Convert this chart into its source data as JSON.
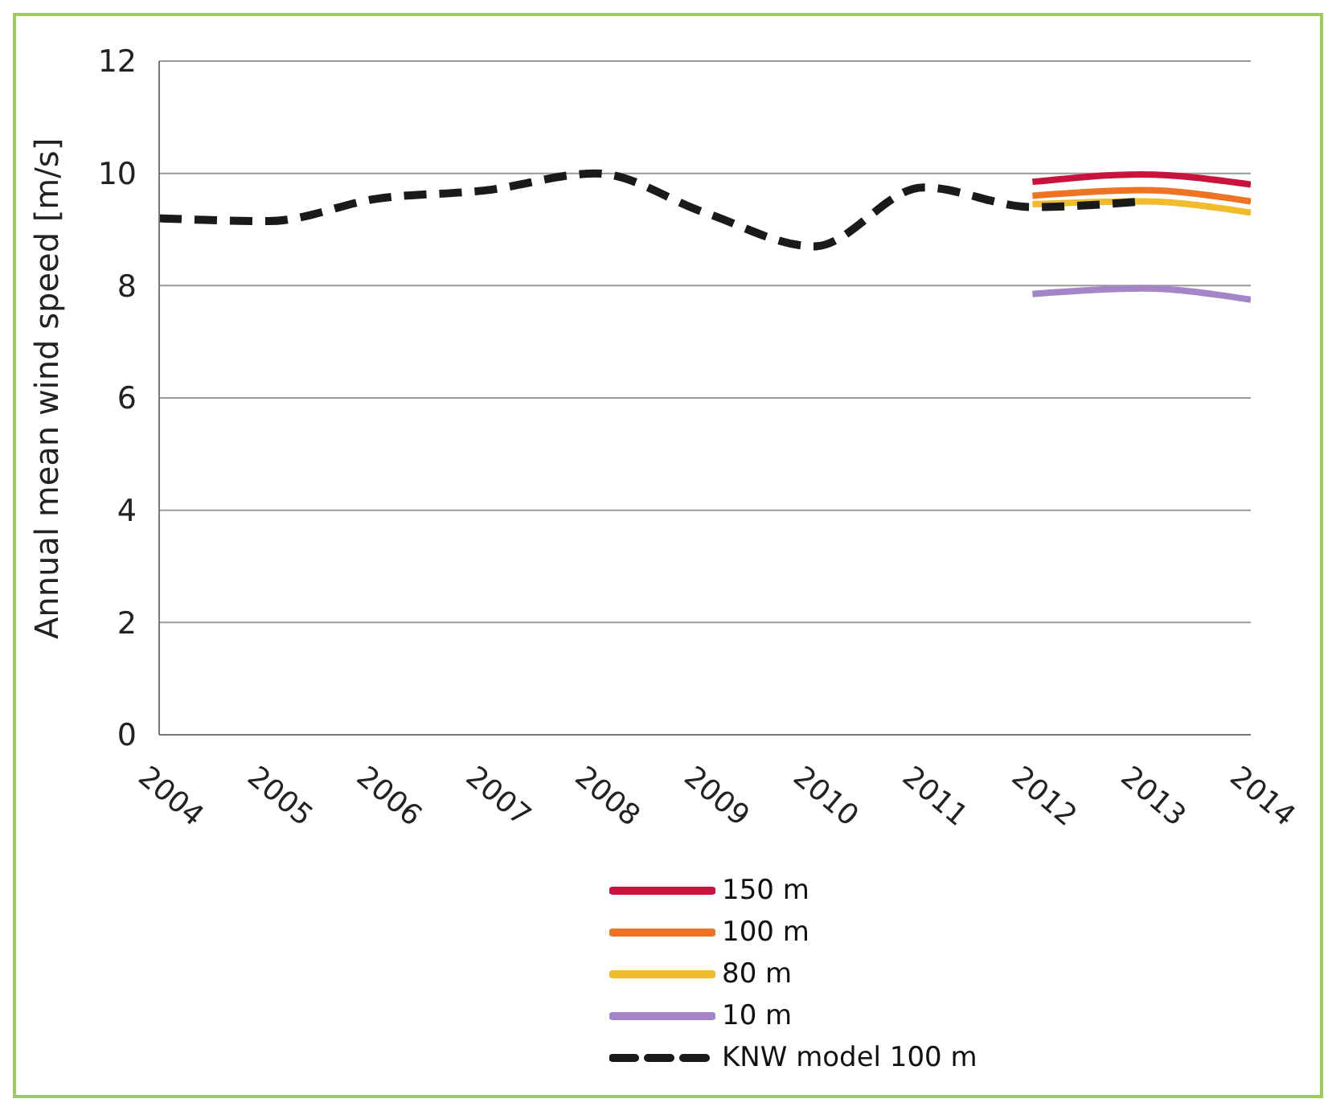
{
  "chart_data": {
    "type": "line",
    "ylabel": "Annual mean wind speed [m/s]",
    "xlim": [
      2004,
      2014
    ],
    "xticks": [
      2004,
      2005,
      2006,
      2007,
      2008,
      2009,
      2010,
      2011,
      2012,
      2013,
      2014
    ],
    "ylim": [
      0,
      12
    ],
    "yticks": [
      0,
      2,
      4,
      6,
      8,
      10,
      12
    ],
    "grid": "y",
    "legend": "bottom",
    "marker": "none",
    "series": [
      {
        "name": "150 m",
        "color": "#c8143c",
        "x": [
          2012,
          2013,
          2014
        ],
        "values": [
          9.85,
          9.98,
          9.8
        ],
        "line_style": "solid"
      },
      {
        "name": "100 m",
        "color": "#ee7424",
        "x": [
          2012,
          2013,
          2014
        ],
        "values": [
          9.6,
          9.7,
          9.5
        ],
        "line_style": "solid"
      },
      {
        "name": "80 m",
        "color": "#f0bc2c",
        "x": [
          2012,
          2013,
          2014
        ],
        "values": [
          9.45,
          9.5,
          9.3
        ],
        "line_style": "solid"
      },
      {
        "name": "10 m",
        "color": "#a486c8",
        "x": [
          2012,
          2013,
          2014
        ],
        "values": [
          7.85,
          7.95,
          7.75
        ],
        "line_style": "solid"
      },
      {
        "name": "KNW model 100 m",
        "color": "#1a1a1a",
        "x": [
          2004,
          2005,
          2006,
          2007,
          2008,
          2009,
          2010,
          2011,
          2012,
          2013
        ],
        "values": [
          9.2,
          9.15,
          9.55,
          9.7,
          10.0,
          9.3,
          8.7,
          9.75,
          9.4,
          9.5
        ],
        "line_style": "dashed"
      }
    ]
  }
}
